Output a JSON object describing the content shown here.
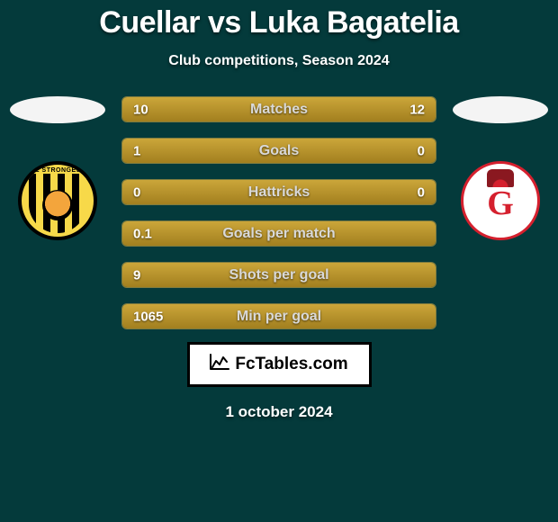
{
  "title": "Cuellar vs Luka Bagatelia",
  "subtitle": "Club competitions, Season 2024",
  "date": "1 october 2024",
  "branding": {
    "label": "FcTables.com"
  },
  "colors": {
    "background": "#043a3b",
    "bar_fill": "#cba63a",
    "bar_border": "#b39b46",
    "text": "#ffffff",
    "label_text": "#d9d9d9"
  },
  "players": {
    "left": {
      "name": "Cuellar",
      "club_text": "HE STRONGEST"
    },
    "right": {
      "name": "Luka Bagatelia"
    }
  },
  "stats": [
    {
      "label": "Matches",
      "left_val": "10",
      "right_val": "12",
      "left_pct": 45.5,
      "right_pct": 54.5
    },
    {
      "label": "Goals",
      "left_val": "1",
      "right_val": "0",
      "left_pct": 83,
      "right_pct": 17
    },
    {
      "label": "Hattricks",
      "left_val": "0",
      "right_val": "0",
      "left_pct": 50,
      "right_pct": 50
    },
    {
      "label": "Goals per match",
      "left_val": "0.1",
      "right_val": "",
      "left_pct": 100,
      "right_pct": 0
    },
    {
      "label": "Shots per goal",
      "left_val": "9",
      "right_val": "",
      "left_pct": 100,
      "right_pct": 0
    },
    {
      "label": "Min per goal",
      "left_val": "1065",
      "right_val": "",
      "left_pct": 100,
      "right_pct": 0
    }
  ]
}
